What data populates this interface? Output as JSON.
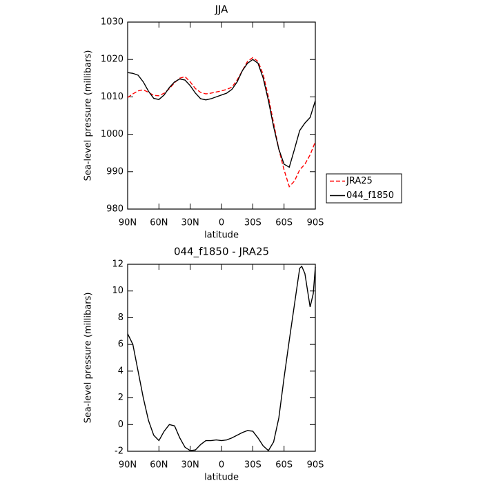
{
  "chart_data": [
    {
      "type": "line",
      "title": "JJA",
      "xlabel": "latitude",
      "ylabel": "Sea-level pressure (millibars)",
      "x": [
        90,
        85,
        80,
        75,
        70,
        65,
        60,
        55,
        50,
        45,
        40,
        35,
        30,
        25,
        20,
        15,
        10,
        5,
        0,
        -5,
        -10,
        -15,
        -20,
        -25,
        -30,
        -35,
        -40,
        -45,
        -50,
        -55,
        -60,
        -65,
        -70,
        -75,
        -80,
        -85,
        -90
      ],
      "series": [
        {
          "name": "JRA25",
          "color": "#ff0000",
          "dashed": true,
          "values": [
            1009.8,
            1010.8,
            1011.6,
            1011.9,
            1011.2,
            1010.4,
            1010.3,
            1011,
            1012.2,
            1013.8,
            1015,
            1015.4,
            1014,
            1012.2,
            1011.2,
            1010.8,
            1011,
            1011.3,
            1011.6,
            1012,
            1012.6,
            1014.5,
            1017,
            1019.5,
            1020.5,
            1019.5,
            1016,
            1010,
            1003,
            996,
            990.5,
            986,
            987.5,
            990.5,
            992,
            994.5,
            998
          ]
        },
        {
          "name": "044_f1850",
          "color": "#000000",
          "dashed": false,
          "values": [
            1016.5,
            1016.3,
            1015.8,
            1014,
            1011.5,
            1009.6,
            1009.3,
            1010.5,
            1012.5,
            1014,
            1014.8,
            1014.5,
            1013,
            1011,
            1009.5,
            1009.2,
            1009.5,
            1010,
            1010.5,
            1011,
            1012,
            1014,
            1017,
            1019,
            1020,
            1019,
            1015,
            1009,
            1002,
            996,
            992,
            991.2,
            996,
            1001,
            1003,
            1004.5,
            1009
          ]
        }
      ],
      "xlim": [
        90,
        -90
      ],
      "xticks": [
        {
          "value": 90,
          "label": "90N"
        },
        {
          "value": 60,
          "label": "60N"
        },
        {
          "value": 30,
          "label": "30N"
        },
        0,
        {
          "value": -30,
          "label": "30S"
        },
        {
          "value": -60,
          "label": "60S"
        },
        {
          "value": -90,
          "label": "90S"
        }
      ],
      "ylim": [
        980,
        1030
      ],
      "yticks": [
        980,
        990,
        1000,
        1010,
        1020,
        1030
      ],
      "legend": "outside right"
    },
    {
      "type": "line",
      "title": "044_f1850 - JRA25",
      "xlabel": "latitude",
      "ylabel": "Sea-level pressure (millibars)",
      "x": [
        90,
        85,
        80,
        75,
        70,
        65,
        60,
        55,
        50,
        45,
        40,
        35,
        30,
        25,
        20,
        15,
        10,
        5,
        0,
        -5,
        -10,
        -15,
        -20,
        -25,
        -30,
        -35,
        -40,
        -45,
        -50,
        -55,
        -60,
        -65,
        -70,
        -75,
        -77,
        -80,
        -85,
        -88,
        -90
      ],
      "values": [
        6.8,
        6,
        4,
        2,
        0.3,
        -0.8,
        -1.2,
        -0.5,
        0,
        -0.1,
        -1,
        -1.7,
        -1.95,
        -1.9,
        -1.5,
        -1.2,
        -1.2,
        -1.15,
        -1.2,
        -1.15,
        -1,
        -0.8,
        -0.6,
        -0.45,
        -0.5,
        -1,
        -1.6,
        -1.95,
        -1.3,
        0.5,
        3.5,
        6.3,
        9,
        11.7,
        11.85,
        11.3,
        8.8,
        9.8,
        11.8
      ],
      "color": "#000000",
      "xlim": [
        90,
        -90
      ],
      "xticks": [
        {
          "value": 90,
          "label": "90N"
        },
        {
          "value": 60,
          "label": "60N"
        },
        {
          "value": 30,
          "label": "30N"
        },
        0,
        {
          "value": -30,
          "label": "30S"
        },
        {
          "value": -60,
          "label": "60S"
        },
        {
          "value": -90,
          "label": "90S"
        }
      ],
      "ylim": [
        -2,
        12
      ],
      "yticks": [
        -2,
        0,
        2,
        4,
        6,
        8,
        10,
        12
      ]
    }
  ]
}
